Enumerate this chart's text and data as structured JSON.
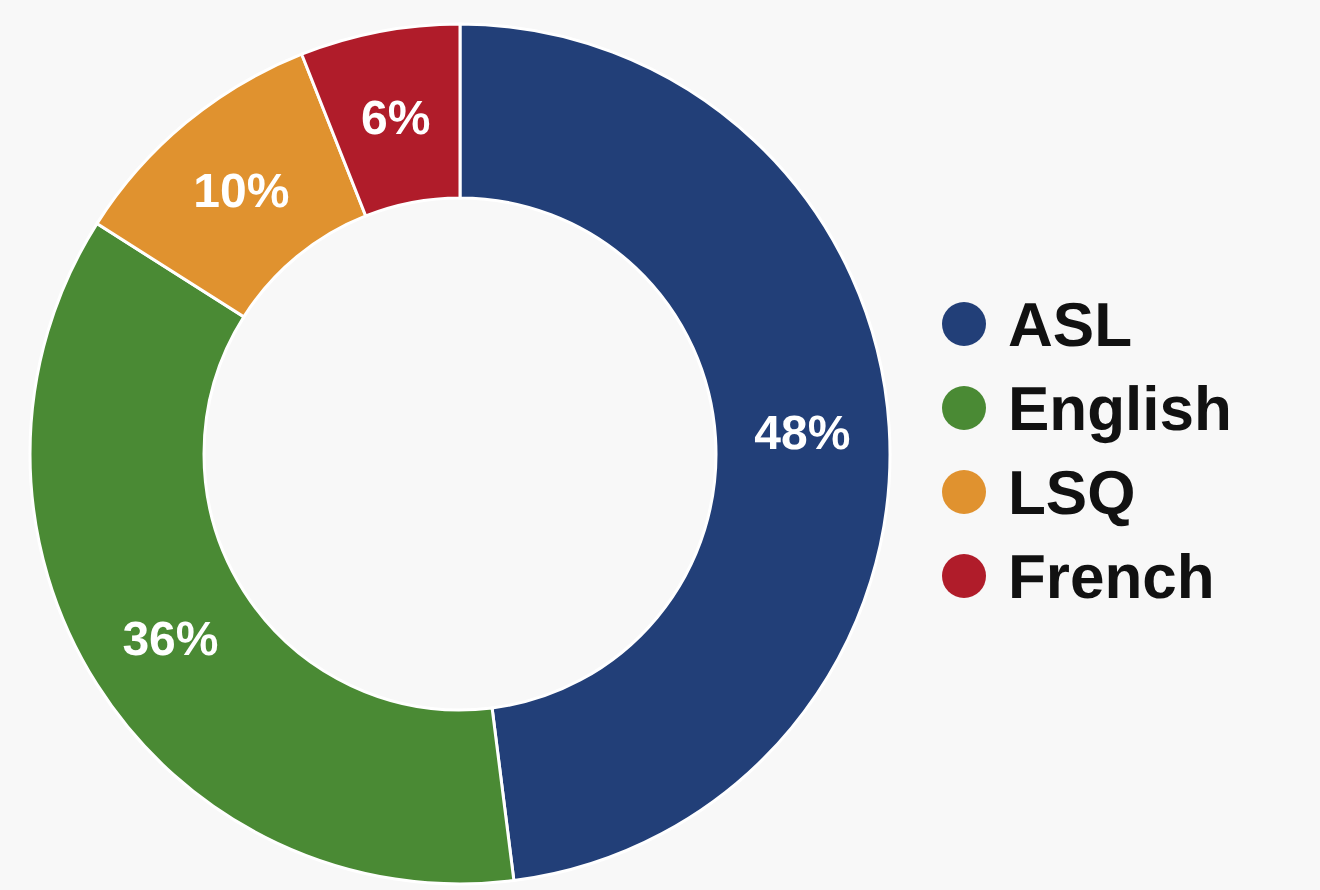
{
  "chart_data": {
    "type": "donut",
    "categories": [
      "ASL",
      "English",
      "LSQ",
      "French"
    ],
    "values": [
      48,
      36,
      10,
      6
    ],
    "colors": [
      "#223f78",
      "#4a8a34",
      "#e0922f",
      "#b01c2a"
    ],
    "value_labels": [
      "48%",
      "36%",
      "10%",
      "6%"
    ],
    "legend": "right"
  }
}
